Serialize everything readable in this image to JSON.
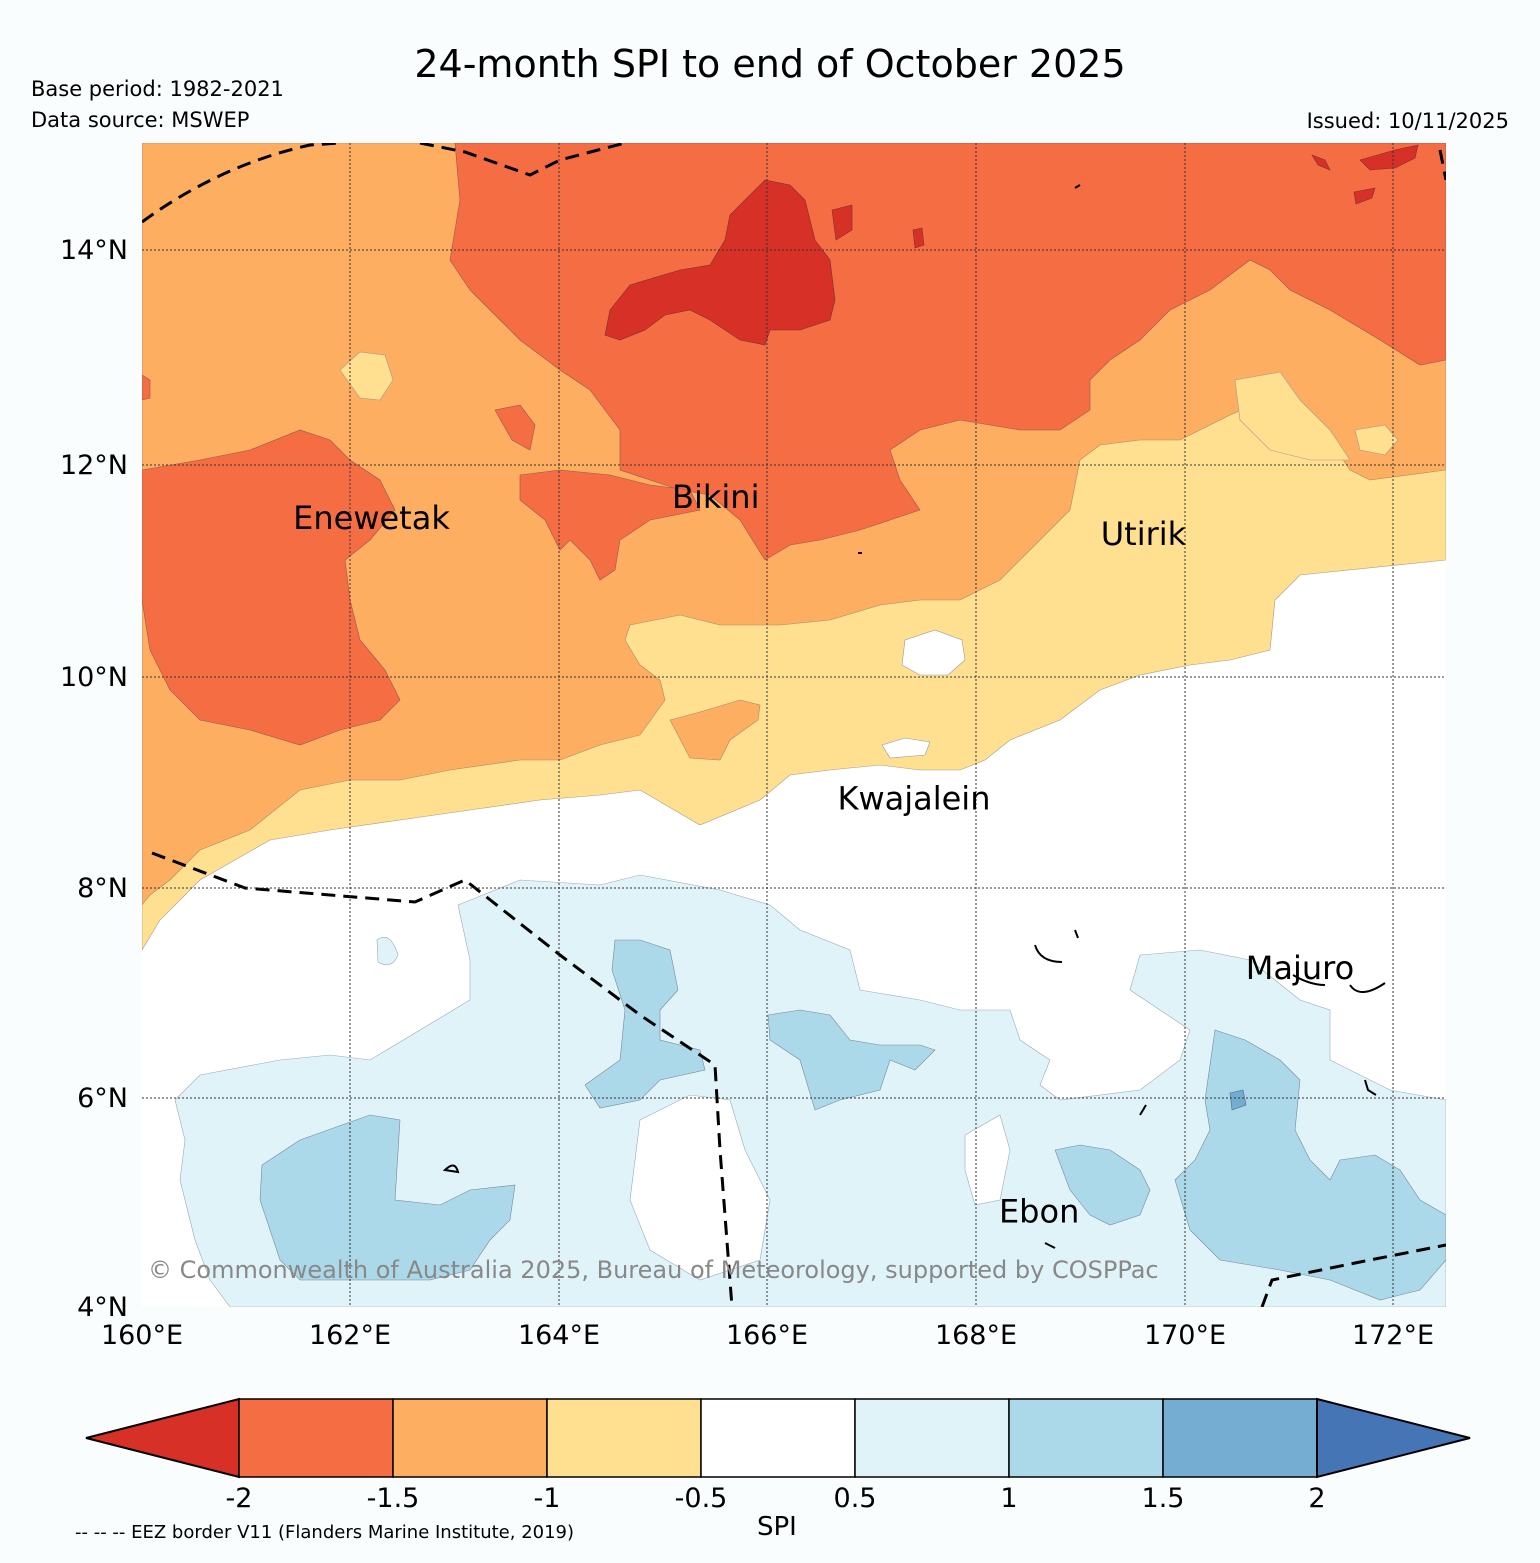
{
  "title": "24-month SPI to end of October 2025",
  "base_period": "Base period: 1982-2021",
  "data_source": "Data source: MSWEP",
  "issued": "Issued: 10/11/2025",
  "copyright": "© Commonwealth of Australia 2025, Bureau of Meteorology, supported by COSPPac",
  "eez_note": "-- -- -- EEZ border V11 (Flanders Marine Institute, 2019)",
  "map": {
    "lat_range": [
      4,
      15
    ],
    "lon_range": [
      160,
      172.5
    ],
    "lat_ticks": [
      "14°N",
      "12°N",
      "10°N",
      "8°N",
      "6°N",
      "4°N"
    ],
    "lon_ticks": [
      "160°E",
      "162°E",
      "164°E",
      "166°E",
      "168°E",
      "170°E",
      "172°E"
    ],
    "places": [
      {
        "name": "Enewetak",
        "lon": 162.2,
        "lat": 11.35
      },
      {
        "name": "Bikini",
        "lon": 165.5,
        "lat": 11.55
      },
      {
        "name": "Utirik",
        "lon": 169.6,
        "lat": 11.2
      },
      {
        "name": "Kwajalein",
        "lon": 167.4,
        "lat": 8.7
      },
      {
        "name": "Majuro",
        "lon": 171.1,
        "lat": 7.1
      },
      {
        "name": "Ebon",
        "lon": 168.6,
        "lat": 4.8
      }
    ]
  },
  "colorbar": {
    "label": "SPI",
    "ticks": [
      "-2",
      "-1.5",
      "-1",
      "-0.5",
      "0.5",
      "1",
      "1.5",
      "2"
    ],
    "colors": [
      "#d73027",
      "#f46d43",
      "#fdae61",
      "#fee090",
      "#ffffff",
      "#e0f3f8",
      "#abd9e9",
      "#74add1",
      "#4575b4"
    ]
  }
}
